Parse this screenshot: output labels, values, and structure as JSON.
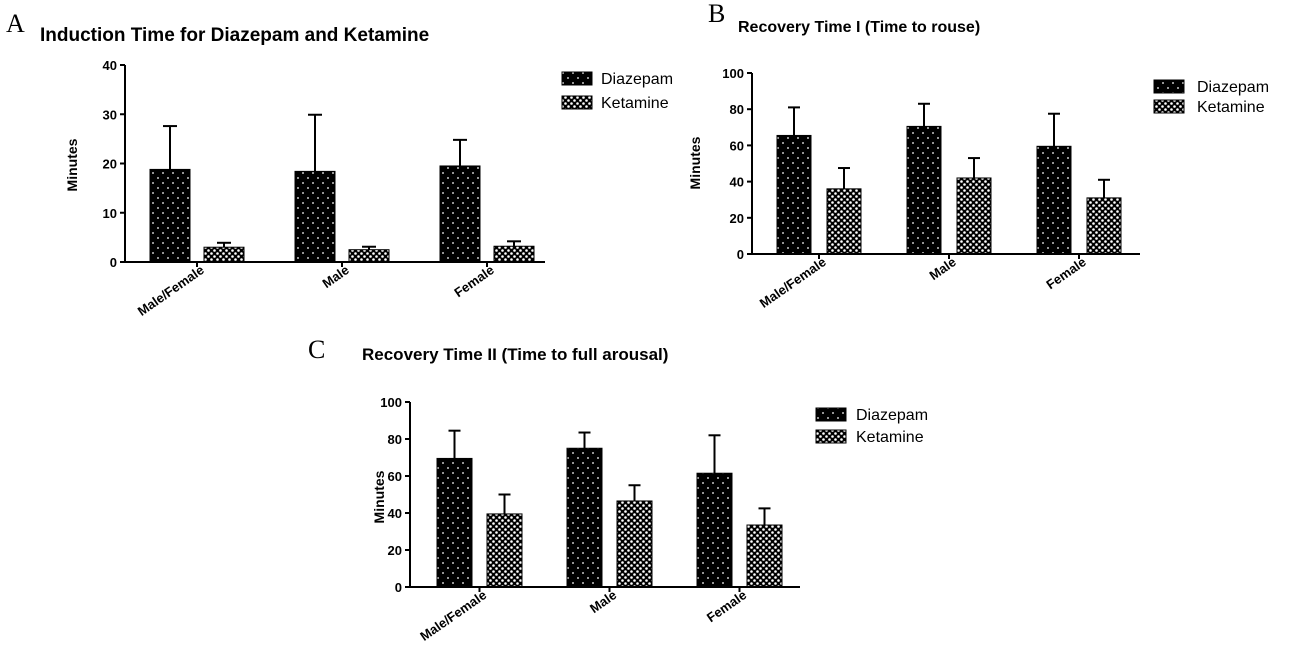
{
  "colors": {
    "axis": "#000000",
    "diazepam_fill": "#000000",
    "ketamine_fill": "#000000",
    "dots": "#ffffff"
  },
  "chart_data": [
    {
      "panel": "A",
      "type": "bar",
      "title": "Induction Time for Diazepam and Ketamine",
      "xlabel": "",
      "ylabel": "Minutes",
      "ylim": [
        0,
        40
      ],
      "yticks": [
        0,
        10,
        20,
        30,
        40
      ],
      "categories": [
        "Male/Female",
        "Male",
        "Female"
      ],
      "series": [
        {
          "name": "Diazepam",
          "pattern": "diazepam",
          "values": [
            18.8,
            18.4,
            19.5
          ],
          "errors": [
            8.8,
            11.5,
            5.3
          ]
        },
        {
          "name": "Ketamine",
          "pattern": "ketamine",
          "values": [
            3.0,
            2.5,
            3.2
          ],
          "errors": [
            0.9,
            0.6,
            1.0
          ]
        }
      ],
      "legend": "top-right",
      "grid": false
    },
    {
      "panel": "B",
      "type": "bar",
      "title": "Recovery Time I (Time to rouse)",
      "xlabel": "",
      "ylabel": "Minutes",
      "ylim": [
        0,
        100
      ],
      "yticks": [
        0,
        20,
        40,
        60,
        80,
        100
      ],
      "categories": [
        "Male/Female",
        "Male",
        "Female"
      ],
      "series": [
        {
          "name": "Diazepam",
          "pattern": "diazepam",
          "values": [
            65.5,
            70.5,
            59.5
          ],
          "errors": [
            15.5,
            12.5,
            18.0
          ]
        },
        {
          "name": "Ketamine",
          "pattern": "ketamine",
          "values": [
            36.0,
            42.0,
            31.0
          ],
          "errors": [
            11.5,
            11.0,
            10.0
          ]
        }
      ],
      "legend": "top-right",
      "grid": false
    },
    {
      "panel": "C",
      "type": "bar",
      "title": "Recovery Time II (Time to full arousal)",
      "xlabel": "",
      "ylabel": "Minutes",
      "ylim": [
        0,
        100
      ],
      "yticks": [
        0,
        20,
        40,
        60,
        80,
        100
      ],
      "categories": [
        "Male/Female",
        "Male",
        "Female"
      ],
      "series": [
        {
          "name": "Diazepam",
          "pattern": "diazepam",
          "values": [
            69.5,
            75.0,
            61.5
          ],
          "errors": [
            15.0,
            8.5,
            20.5
          ]
        },
        {
          "name": "Ketamine",
          "pattern": "ketamine",
          "values": [
            39.5,
            46.5,
            33.5
          ],
          "errors": [
            10.5,
            8.5,
            9.0
          ]
        }
      ],
      "legend": "top-right",
      "grid": false
    }
  ]
}
